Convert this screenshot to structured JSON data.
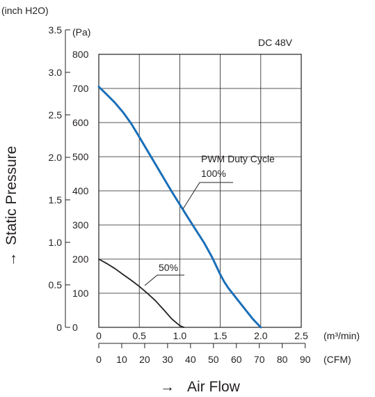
{
  "chart_data": {
    "type": "line",
    "voltage_label": "DC 48V",
    "ylabel": "Static Pressure",
    "ylabel_arrow": "→",
    "xlabel": "Air Flow",
    "xlabel_arrow": "→",
    "y_pa_unit": "(Pa)",
    "y_inch_unit": "(inch H2O)",
    "x_m3_unit": "(m³/min)",
    "x_cfm_unit": "(CFM)",
    "y_pa_ticks": [
      "0",
      "100",
      "200",
      "300",
      "400",
      "500",
      "600",
      "700",
      "800"
    ],
    "y_pa_range": [
      0,
      800
    ],
    "y_inch_ticks": [
      "0",
      "0.5",
      "1.0",
      "1.5",
      "2.0",
      "2.5",
      "3.0",
      "3.5"
    ],
    "y_inch_values": [
      0,
      0.5,
      1.0,
      1.5,
      2.0,
      2.5,
      3.0,
      3.5
    ],
    "inch_per_pa": 0.004015,
    "x_m3_ticks": [
      "0",
      "0.5",
      "1.0",
      "1.5",
      "2.0",
      "2.5"
    ],
    "x_m3_range": [
      0,
      2.5
    ],
    "x_cfm_ticks": [
      "0",
      "10",
      "20",
      "30",
      "40",
      "50",
      "60",
      "70",
      "80",
      "90"
    ],
    "cfm_per_m3": 35.315,
    "grid": true,
    "annotations": {
      "duty_cycle": "PWM Duty Cycle",
      "full": "100%",
      "half": "50%"
    },
    "series": [
      {
        "name": "100%",
        "color": "#1a6fb8",
        "x": [
          0,
          0.1,
          0.2,
          0.3,
          0.4,
          0.5,
          0.6,
          0.7,
          0.8,
          0.9,
          1.0,
          1.1,
          1.2,
          1.3,
          1.4,
          1.45,
          1.5,
          1.55,
          1.6,
          1.7,
          1.8,
          1.9,
          2.0
        ],
        "y": [
          705,
          682,
          658,
          630,
          597,
          558,
          518,
          478,
          438,
          398,
          360,
          322,
          285,
          248,
          205,
          180,
          155,
          133,
          115,
          85,
          55,
          25,
          0
        ]
      },
      {
        "name": "50%",
        "color": "#231f20",
        "x": [
          0,
          0.1,
          0.2,
          0.3,
          0.4,
          0.5,
          0.6,
          0.7,
          0.8,
          0.9,
          1.0,
          1.05
        ],
        "y": [
          200,
          187,
          172,
          155,
          138,
          120,
          100,
          78,
          52,
          25,
          5,
          0
        ]
      }
    ]
  }
}
